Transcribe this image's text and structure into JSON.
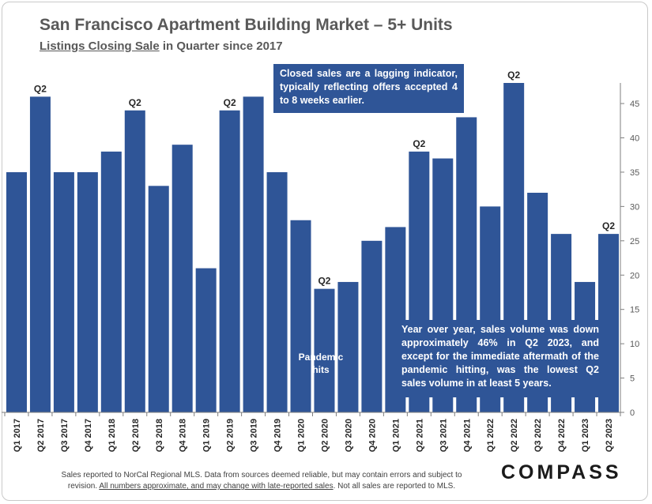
{
  "title": "San Francisco Apartment Building Market – 5+ Units",
  "subtitle": {
    "underlined": "Listings Closing Sale",
    "rest": " in Quarter since 2017"
  },
  "notes": {
    "top": "Closed sales are a lagging indicator, typically reflecting offers accepted 4 to 8 weeks earlier.",
    "bottom": "Year over year, sales volume was down approximately 46% in Q2 2023, and except for the immediate aftermath of the pandemic hitting, was the lowest Q2 sales volume in at least 5 years.",
    "pandemic": "Pandemic hits"
  },
  "footer": {
    "line1": "Sales reported to NorCal Regional MLS. Data from sources deemed reliable, but may contain errors and subject to",
    "line2_start": "revision. ",
    "line2_underlined": "All numbers approximate, and may change with late-reported sales",
    "line2_end": ". Not all sales are reported to MLS."
  },
  "logo": "COMPASS",
  "colors": {
    "bar": "#2f5597",
    "text": "#595959",
    "axis": "#7f7f7f"
  },
  "chart_data": {
    "type": "bar",
    "title": "San Francisco Apartment Building Market – 5+ Units",
    "xlabel": "",
    "ylabel": "",
    "ylim": [
      0,
      48
    ],
    "yticks": [
      0,
      5,
      10,
      15,
      20,
      25,
      30,
      35,
      40,
      45
    ],
    "y_axis_side": "right",
    "grid": false,
    "categories": [
      "Q1 2017",
      "Q2 2017",
      "Q3 2017",
      "Q4 2017",
      "Q1 2018",
      "Q2 2018",
      "Q3 2018",
      "Q4 2018",
      "Q1 2019",
      "Q2 2019",
      "Q3 2019",
      "Q4 2019",
      "Q1 2020",
      "Q2 2020",
      "Q3 2020",
      "Q4 2020",
      "Q1 2021",
      "Q2 2021",
      "Q3 2021",
      "Q4 2021",
      "Q1 2022",
      "Q2 2022",
      "Q3 2022",
      "Q4 2022",
      "Q1 2023",
      "Q2 2023"
    ],
    "values": [
      35,
      46,
      35,
      35,
      38,
      44,
      33,
      39,
      21,
      44,
      46,
      35,
      28,
      18,
      19,
      25,
      27,
      38,
      37,
      43,
      30,
      48,
      32,
      26,
      19,
      26
    ],
    "bar_annotations": [
      {
        "category": "Q2 2017",
        "label": "Q2"
      },
      {
        "category": "Q2 2018",
        "label": "Q2"
      },
      {
        "category": "Q2 2019",
        "label": "Q2"
      },
      {
        "category": "Q2 2020",
        "label": "Q2"
      },
      {
        "category": "Q2 2021",
        "label": "Q2"
      },
      {
        "category": "Q2 2022",
        "label": "Q2"
      },
      {
        "category": "Q2 2023",
        "label": "Q2"
      }
    ]
  }
}
